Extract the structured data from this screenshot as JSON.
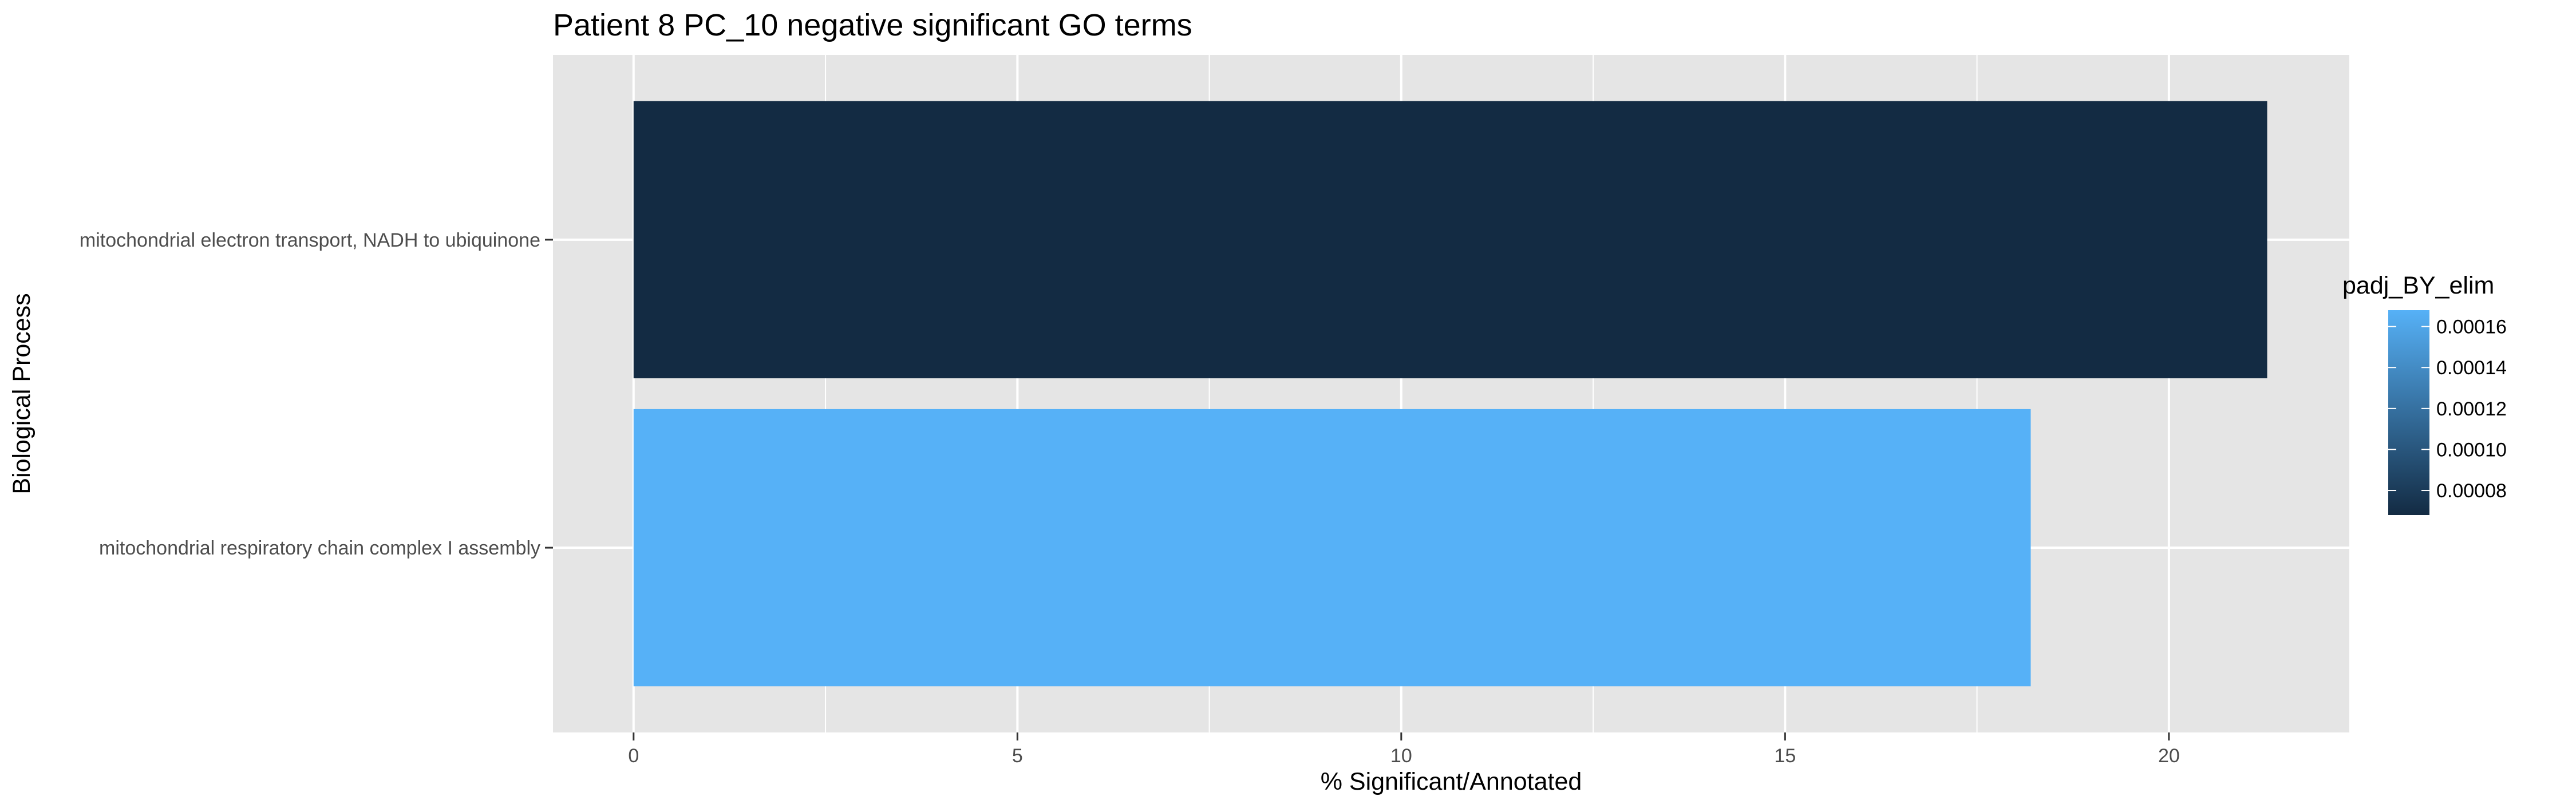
{
  "chart_data": {
    "type": "bar",
    "orientation": "horizontal",
    "title": "Patient 8 PC_10 negative significant GO terms",
    "xlabel": "% Significant/Annotated",
    "ylabel": "Biological Process",
    "xlim": [
      -1.05,
      22.35
    ],
    "x_ticks": [
      0,
      5,
      10,
      15,
      20
    ],
    "x_tick_labels": [
      "0",
      "5",
      "10",
      "15",
      "20"
    ],
    "grid": true,
    "categories": [
      "mitochondrial electron transport, NADH to ubiquinone",
      "mitochondrial respiratory chain complex I assembly"
    ],
    "values": [
      21.28,
      18.2
    ],
    "padj": [
      6.8e-05,
      0.000168
    ],
    "legend": {
      "title": "padj_BY_elim",
      "position": "right",
      "type": "colorbar",
      "range": [
        6.8e-05,
        0.000168
      ],
      "breaks": [
        0.00016,
        0.00014,
        0.00012,
        0.0001,
        8e-05
      ],
      "labels": [
        "0.00016",
        "0.00014",
        "0.00012",
        "0.00010",
        "0.00008"
      ],
      "low_color": "#132b43",
      "high_color": "#56b1f7"
    },
    "colors": {
      "panel_background": "#e5e5e5",
      "grid_line": "#ffffff",
      "bar_low": "#132b43",
      "bar_high": "#56b1f7"
    }
  }
}
